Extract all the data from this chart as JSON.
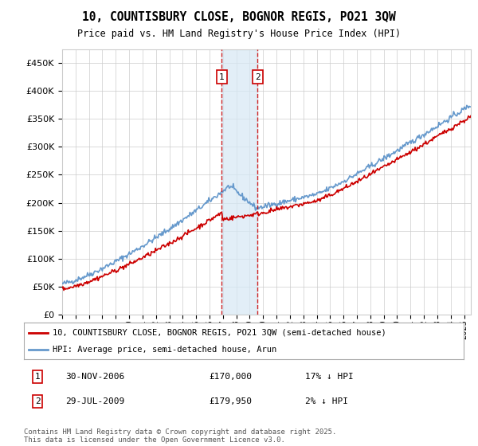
{
  "title_line1": "10, COUNTISBURY CLOSE, BOGNOR REGIS, PO21 3QW",
  "title_line2": "Price paid vs. HM Land Registry's House Price Index (HPI)",
  "legend_line1": "10, COUNTISBURY CLOSE, BOGNOR REGIS, PO21 3QW (semi-detached house)",
  "legend_line2": "HPI: Average price, semi-detached house, Arun",
  "transaction1_date": "30-NOV-2006",
  "transaction1_price": "£170,000",
  "transaction1_hpi": "17% ↓ HPI",
  "transaction2_date": "29-JUL-2009",
  "transaction2_price": "£179,950",
  "transaction2_hpi": "2% ↓ HPI",
  "red_color": "#cc0000",
  "blue_color": "#6699cc",
  "light_blue_fill": "#d6e8f5",
  "vline_color": "#cc0000",
  "grid_color": "#cccccc",
  "background_color": "#ffffff",
  "footer_text": "Contains HM Land Registry data © Crown copyright and database right 2025.\nThis data is licensed under the Open Government Licence v3.0.",
  "ylim_min": 0,
  "ylim_max": 475000,
  "transaction1_year": 2006.92,
  "transaction2_year": 2009.58
}
